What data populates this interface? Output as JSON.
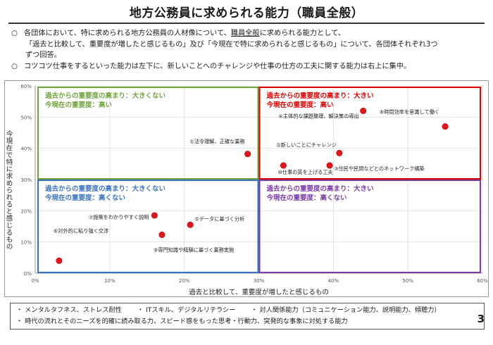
{
  "header": {
    "title": "地方公務員に求められる能力（職員全般）"
  },
  "notes": {
    "bullet": "○",
    "line1_a": "各団体において、特に求められる地方公務員の人材像について、",
    "line1_b": "職員全般",
    "line1_c": "に求められる能力として、",
    "line2": "「過去と比較して、重要度が増したと感じるもの」及び「今現在で特に求められると感じるもの」について、各団体それぞれ3つ",
    "line3": "ずつ回答。",
    "line4": "コツコツ仕事をするといった能力は左下に、新しいことへのチャレンジや仕事の仕方の工夫に関する能力は右上に集中。"
  },
  "chart_data": {
    "type": "scatter",
    "xlabel": "過去と比較して、重要度が増したと感じるもの",
    "ylabel": "今現在で特に求められると感じるもの",
    "xlim": [
      0,
      60
    ],
    "ylim": [
      0,
      60
    ],
    "x_ticks": [
      "0%",
      "10%",
      "20%",
      "30%",
      "40%",
      "50%",
      "60%"
    ],
    "y_ticks": [
      "0%",
      "10%",
      "20%",
      "30%",
      "40%",
      "50%",
      "60%"
    ],
    "divider_x": 30,
    "divider_y": 30,
    "point_color": "#e8141b",
    "quadrants": [
      {
        "id": "top-left",
        "color": "#70a53c",
        "line1": "過去からの重要度の高まり：大きくない",
        "line2": "今現在の重要度：高い"
      },
      {
        "id": "top-right",
        "color": "#e00000",
        "line1": "過去からの重要度の高まり：大きい",
        "line2": "今現在の重要度：高い"
      },
      {
        "id": "bottom-left",
        "color": "#3b73c4",
        "line1": "過去からの重要度の高まり：大きくない",
        "line2": "今現在の重要度：高くない"
      },
      {
        "id": "bottom-right",
        "color": "#7a3aa8",
        "line1": "過去からの重要度の高まり：大きい",
        "line2": "今現在の重要度：高くない"
      }
    ],
    "points": [
      {
        "label": "①法令理解、正確な業務",
        "x": 28.5,
        "y": 38.2
      },
      {
        "label": "②新しいことにチャレンジ",
        "x": 40.8,
        "y": 38.5
      },
      {
        "label": "③住民や民間などとのネットワーク構築",
        "x": 39.5,
        "y": 34.5
      },
      {
        "label": "④主体的な課題整理、解決策の導出",
        "x": 44.0,
        "y": 52.0
      },
      {
        "label": "⑤データに基づく分析",
        "x": 20.8,
        "y": 15.5
      },
      {
        "label": "⑥対外的に粘り強く交渉",
        "x": 3.2,
        "y": 4.0
      },
      {
        "label": "⑦施策をわかりやすく説明",
        "x": 16.0,
        "y": 18.5
      },
      {
        "label": "⑧時間効率を意識して働く",
        "x": 55.0,
        "y": 47.0
      },
      {
        "label": "⑨専門知識や経験に基づく業務実施",
        "x": 17.0,
        "y": 12.3
      },
      {
        "label": "⑩仕事の質を上げる工夫",
        "x": 33.3,
        "y": 34.5
      }
    ]
  },
  "legend": {
    "row1": [
      "・ メンタルタフネス、ストレス耐性",
      "・ ITスキル、デジタルリテラシー",
      "・ 対人関係能力（コミュニケーション能力、説明能力、傾聴力）"
    ],
    "row2": [
      "・ 時代の流れとそのニーズを的確に読み取る力、スピード感をもった思考・行動力、突発的な事象に対処する能力"
    ]
  },
  "page": {
    "number": "3"
  }
}
